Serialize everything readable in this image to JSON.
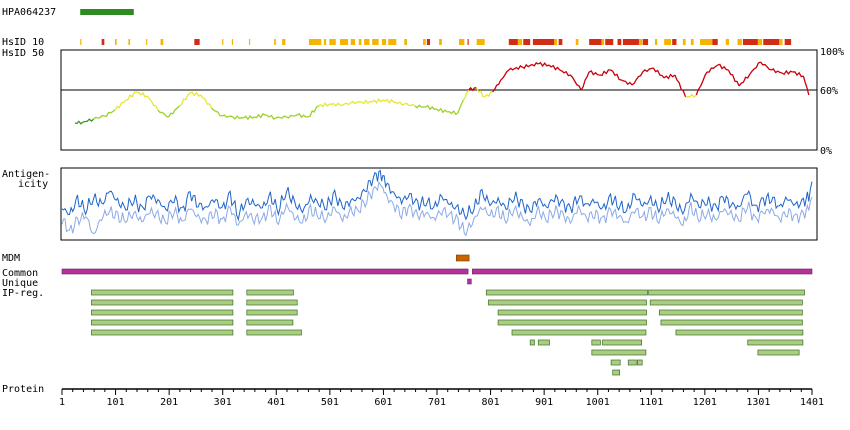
{
  "antibody": "HPA064237",
  "chart_data": {
    "type": "line",
    "protein_length": 1401,
    "x_axis": {
      "label": "Protein",
      "ticks": [
        1,
        101,
        201,
        301,
        401,
        501,
        601,
        701,
        801,
        901,
        1001,
        1101,
        1201,
        1301,
        1401
      ]
    },
    "antigen_range": [
      35,
      135
    ],
    "hsid10": {
      "label": "HsID 10",
      "segments": [
        {
          "range": [
            35,
            37
          ],
          "color": "#f5b400"
        },
        {
          "range": [
            75,
            80
          ],
          "color": "#d22d14"
        },
        {
          "range": [
            100,
            103
          ],
          "color": "#f5b400"
        },
        {
          "range": [
            125,
            128
          ],
          "color": "#f5b400"
        },
        {
          "range": [
            158,
            160
          ],
          "color": "#f5b400"
        },
        {
          "range": [
            185,
            190
          ],
          "color": "#f5b400"
        },
        {
          "range": [
            248,
            258
          ],
          "color": "#d22d14"
        },
        {
          "range": [
            300,
            302
          ],
          "color": "#f5b400"
        },
        {
          "range": [
            318,
            320
          ],
          "color": "#f5b400"
        },
        {
          "range": [
            350,
            352
          ],
          "color": "#f5b400"
        },
        {
          "range": [
            397,
            400
          ],
          "color": "#f5b400"
        },
        {
          "range": [
            412,
            418
          ],
          "color": "#f5b400"
        },
        {
          "range": [
            462,
            485
          ],
          "color": "#f5b400"
        },
        {
          "range": [
            490,
            494
          ],
          "color": "#f5b400"
        },
        {
          "range": [
            500,
            512
          ],
          "color": "#f5b400"
        },
        {
          "range": [
            520,
            535
          ],
          "color": "#f5b400"
        },
        {
          "range": [
            540,
            548
          ],
          "color": "#f5b400"
        },
        {
          "range": [
            555,
            560
          ],
          "color": "#f5b400"
        },
        {
          "range": [
            565,
            575
          ],
          "color": "#f5b400"
        },
        {
          "range": [
            580,
            592
          ],
          "color": "#f5b400"
        },
        {
          "range": [
            598,
            606
          ],
          "color": "#f5b400"
        },
        {
          "range": [
            610,
            625
          ],
          "color": "#f5b400"
        },
        {
          "range": [
            640,
            645
          ],
          "color": "#f5b400"
        },
        {
          "range": [
            675,
            680
          ],
          "color": "#f5b400"
        },
        {
          "range": [
            682,
            688
          ],
          "color": "#d22d14"
        },
        {
          "range": [
            705,
            710
          ],
          "color": "#f5b400"
        },
        {
          "range": [
            742,
            752
          ],
          "color": "#f5b400"
        },
        {
          "range": [
            758,
            760
          ],
          "color": "#d22d14"
        },
        {
          "range": [
            775,
            790
          ],
          "color": "#f5b400"
        },
        {
          "range": [
            835,
            852
          ],
          "color": "#d22d14"
        },
        {
          "range": [
            852,
            860
          ],
          "color": "#f5b400"
        },
        {
          "range": [
            862,
            875
          ],
          "color": "#d22d14"
        },
        {
          "range": [
            880,
            920
          ],
          "color": "#d22d14"
        },
        {
          "range": [
            920,
            925
          ],
          "color": "#f5b400"
        },
        {
          "range": [
            928,
            935
          ],
          "color": "#d22d14"
        },
        {
          "range": [
            960,
            965
          ],
          "color": "#f5b400"
        },
        {
          "range": [
            985,
            1008
          ],
          "color": "#d22d14"
        },
        {
          "range": [
            1008,
            1013
          ],
          "color": "#f5b400"
        },
        {
          "range": [
            1015,
            1030
          ],
          "color": "#d22d14"
        },
        {
          "range": [
            1038,
            1045
          ],
          "color": "#d22d14"
        },
        {
          "range": [
            1048,
            1078
          ],
          "color": "#d22d14"
        },
        {
          "range": [
            1078,
            1084
          ],
          "color": "#f5b400"
        },
        {
          "range": [
            1085,
            1095
          ],
          "color": "#d22d14"
        },
        {
          "range": [
            1108,
            1112
          ],
          "color": "#f5b400"
        },
        {
          "range": [
            1125,
            1138
          ],
          "color": "#f5b400"
        },
        {
          "range": [
            1140,
            1148
          ],
          "color": "#d22d14"
        },
        {
          "range": [
            1160,
            1165
          ],
          "color": "#f5b400"
        },
        {
          "range": [
            1175,
            1180
          ],
          "color": "#f5b400"
        },
        {
          "range": [
            1192,
            1215
          ],
          "color": "#f5b400"
        },
        {
          "range": [
            1215,
            1225
          ],
          "color": "#d22d14"
        },
        {
          "range": [
            1240,
            1246
          ],
          "color": "#f5b400"
        },
        {
          "range": [
            1262,
            1270
          ],
          "color": "#f5b400"
        },
        {
          "range": [
            1272,
            1300
          ],
          "color": "#d22d14"
        },
        {
          "range": [
            1300,
            1308
          ],
          "color": "#f5b400"
        },
        {
          "range": [
            1310,
            1340
          ],
          "color": "#d22d14"
        },
        {
          "range": [
            1340,
            1346
          ],
          "color": "#f5b400"
        },
        {
          "range": [
            1350,
            1362
          ],
          "color": "#d22d14"
        }
      ]
    },
    "hsid50": {
      "label": "HsID 50",
      "y_ticks": [
        "100%",
        "60%",
        "0%"
      ],
      "threshold": 60,
      "ylim": [
        0,
        100
      ],
      "x": [
        25,
        40,
        60,
        80,
        100,
        120,
        140,
        160,
        180,
        200,
        220,
        240,
        260,
        280,
        300,
        320,
        340,
        360,
        380,
        400,
        420,
        440,
        460,
        480,
        500,
        520,
        540,
        560,
        580,
        600,
        620,
        640,
        660,
        680,
        700,
        720,
        740,
        750,
        760,
        775,
        790,
        805,
        820,
        835,
        860,
        890,
        910,
        930,
        950,
        970,
        985,
        1005,
        1025,
        1045,
        1065,
        1085,
        1105,
        1125,
        1145,
        1165,
        1185,
        1205,
        1225,
        1245,
        1265,
        1285,
        1305,
        1325,
        1345,
        1365,
        1385,
        1395
      ],
      "y": [
        27,
        28,
        31,
        34,
        40,
        50,
        58,
        54,
        40,
        33,
        44,
        57,
        55,
        42,
        34,
        33,
        32,
        33,
        35,
        32,
        33,
        35,
        33,
        44,
        46,
        45,
        47,
        48,
        48,
        50,
        48,
        46,
        44,
        43,
        41,
        38,
        37,
        50,
        60,
        62,
        53,
        58,
        70,
        80,
        83,
        86,
        85,
        80,
        75,
        60,
        78,
        75,
        80,
        70,
        65,
        78,
        82,
        72,
        75,
        53,
        55,
        78,
        85,
        80,
        64,
        76,
        88,
        80,
        77,
        78,
        74,
        55
      ]
    },
    "antigenicity": {
      "label_lines": [
        "Antigen-",
        "icity"
      ],
      "ylim": [
        0,
        1
      ],
      "dark_x": [
        1,
        15,
        30,
        45,
        60,
        75,
        90,
        105,
        120,
        135,
        150,
        165,
        180,
        195,
        210,
        225,
        240,
        255,
        270,
        285,
        300,
        315,
        330,
        345,
        360,
        375,
        390,
        405,
        420,
        435,
        450,
        465,
        480,
        495,
        510,
        525,
        540,
        555,
        570,
        585,
        595,
        605,
        620,
        635,
        650,
        665,
        680,
        695,
        710,
        725,
        740,
        755,
        770,
        785,
        800,
        815,
        830,
        845,
        860,
        875,
        890,
        905,
        920,
        935,
        950,
        965,
        980,
        995,
        1010,
        1025,
        1040,
        1055,
        1070,
        1085,
        1100,
        1115,
        1130,
        1145,
        1160,
        1175,
        1190,
        1205,
        1220,
        1235,
        1250,
        1265,
        1280,
        1295,
        1310,
        1325,
        1340,
        1355,
        1370,
        1385,
        1395,
        1401
      ],
      "dark_y": [
        0.45,
        0.35,
        0.55,
        0.42,
        0.6,
        0.48,
        0.7,
        0.52,
        0.45,
        0.58,
        0.4,
        0.62,
        0.55,
        0.42,
        0.6,
        0.38,
        0.65,
        0.5,
        0.44,
        0.58,
        0.42,
        0.62,
        0.35,
        0.55,
        0.5,
        0.45,
        0.6,
        0.42,
        0.7,
        0.5,
        0.4,
        0.58,
        0.52,
        0.48,
        0.62,
        0.45,
        0.55,
        0.58,
        0.75,
        0.88,
        0.95,
        0.8,
        0.65,
        0.55,
        0.62,
        0.48,
        0.55,
        0.45,
        0.6,
        0.5,
        0.42,
        0.35,
        0.45,
        0.65,
        0.5,
        0.55,
        0.45,
        0.62,
        0.48,
        0.4,
        0.58,
        0.45,
        0.6,
        0.5,
        0.42,
        0.62,
        0.48,
        0.55,
        0.42,
        0.58,
        0.5,
        0.4,
        0.62,
        0.48,
        0.55,
        0.45,
        0.6,
        0.5,
        0.38,
        0.62,
        0.48,
        0.55,
        0.42,
        0.6,
        0.5,
        0.45,
        0.7,
        0.42,
        0.55,
        0.6,
        0.45,
        0.58,
        0.48,
        0.52,
        0.62,
        0.82
      ],
      "light_x": [
        1,
        15,
        30,
        45,
        60,
        75,
        90,
        105,
        120,
        135,
        150,
        165,
        180,
        195,
        210,
        225,
        240,
        255,
        270,
        285,
        300,
        315,
        330,
        345,
        360,
        375,
        390,
        405,
        420,
        435,
        450,
        465,
        480,
        495,
        510,
        525,
        540,
        555,
        570,
        585,
        595,
        605,
        620,
        635,
        650,
        665,
        680,
        695,
        710,
        725,
        740,
        755,
        770,
        785,
        800,
        815,
        830,
        845,
        860,
        875,
        890,
        905,
        920,
        935,
        950,
        965,
        980,
        995,
        1010,
        1025,
        1040,
        1055,
        1070,
        1085,
        1100,
        1115,
        1130,
        1145,
        1160,
        1175,
        1190,
        1205,
        1220,
        1235,
        1250,
        1265,
        1280,
        1295,
        1310,
        1325,
        1340,
        1355,
        1370,
        1385,
        1395,
        1401
      ],
      "light_y": [
        0.3,
        0.1,
        0.25,
        0.35,
        0.05,
        0.32,
        0.4,
        0.3,
        0.28,
        0.38,
        0.25,
        0.4,
        0.32,
        0.25,
        0.42,
        0.22,
        0.45,
        0.3,
        0.26,
        0.4,
        0.24,
        0.44,
        0.2,
        0.36,
        0.3,
        0.28,
        0.42,
        0.25,
        0.48,
        0.32,
        0.24,
        0.4,
        0.34,
        0.3,
        0.44,
        0.28,
        0.38,
        0.42,
        0.58,
        0.7,
        0.8,
        0.62,
        0.48,
        0.38,
        0.44,
        0.32,
        0.38,
        0.28,
        0.42,
        0.34,
        0.24,
        0.1,
        0.28,
        0.46,
        0.34,
        0.38,
        0.28,
        0.44,
        0.3,
        0.22,
        0.4,
        0.28,
        0.42,
        0.34,
        0.24,
        0.44,
        0.3,
        0.38,
        0.26,
        0.4,
        0.34,
        0.22,
        0.44,
        0.3,
        0.38,
        0.28,
        0.42,
        0.34,
        0.2,
        0.44,
        0.3,
        0.38,
        0.26,
        0.42,
        0.34,
        0.28,
        0.5,
        0.26,
        0.38,
        0.42,
        0.28,
        0.4,
        0.3,
        0.34,
        0.44,
        0.6
      ]
    },
    "mdm": {
      "label": "MDM",
      "range": [
        737,
        761
      ]
    },
    "common": {
      "label": "Common",
      "ranges": [
        [
          1,
          759
        ],
        [
          767,
          1401
        ]
      ]
    },
    "unique": {
      "label": "Unique",
      "ranges": [
        [
          758,
          765
        ]
      ]
    },
    "ipreg": {
      "label": "IP-reg.",
      "rows": [
        [
          [
            56,
            320
          ],
          [
            346,
            433
          ],
          [
            793,
            1094
          ],
          [
            1096,
            1387
          ]
        ],
        [
          [
            56,
            320
          ],
          [
            346,
            440
          ],
          [
            797,
            1092
          ],
          [
            1099,
            1383
          ]
        ],
        [
          [
            56,
            320
          ],
          [
            346,
            440
          ],
          [
            815,
            1092
          ],
          [
            1116,
            1383
          ]
        ],
        [
          [
            56,
            320
          ],
          [
            346,
            432
          ],
          [
            815,
            1092
          ],
          [
            1119,
            1383
          ]
        ],
        [
          [
            56,
            320
          ],
          [
            346,
            448
          ],
          [
            841,
            1091
          ],
          [
            1147,
            1384
          ]
        ],
        [
          [
            875,
            883
          ],
          [
            890,
            911
          ],
          [
            990,
            1006
          ],
          [
            1010,
            1083
          ],
          [
            1281,
            1384
          ]
        ],
        [
          [
            990,
            1091
          ],
          [
            1300,
            1377
          ]
        ],
        [
          [
            1026,
            1043
          ],
          [
            1058,
            1073
          ],
          [
            1075,
            1084
          ]
        ],
        [
          [
            1029,
            1042
          ]
        ]
      ]
    },
    "colors": {
      "antigen_bar": "#2e8b22",
      "hsid_red": "#c8000a",
      "hsid_yellow": "#e6e632",
      "hsid_lightgreen": "#9ad22a",
      "hsid_green": "#3c9628",
      "antigen_dark": "#1e64c8",
      "antigen_light": "#8caae6",
      "mdm": "#c86400",
      "common": "#b4329b",
      "unique": "#b4329b",
      "ipreg_fill": "#aacd82",
      "ipreg_stroke": "#3c6e28"
    }
  }
}
